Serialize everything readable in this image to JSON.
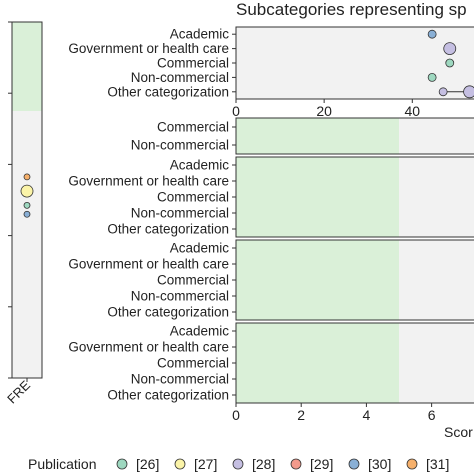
{
  "title": "Subcategories representing sp",
  "left_panel": {
    "x_tick": "FRE",
    "ylim": [
      0,
      100
    ],
    "green_band": [
      75,
      100
    ],
    "points": [
      {
        "pub": "[31]",
        "y": 56.5
      },
      {
        "pub": "[27]",
        "y": 52.5
      },
      {
        "pub": "[26]",
        "y": 48.5
      },
      {
        "pub": "[30]",
        "y": 46.0
      }
    ]
  },
  "chart_data": [
    {
      "type": "scatter",
      "panel": "top",
      "title": "Subcategories representing sp",
      "categories": [
        "Academic",
        "Government or health care",
        "Commercial",
        "Non-commercial",
        "Other categorization"
      ],
      "xlim": [
        0,
        54
      ],
      "x_ticks": [
        "0",
        "20",
        "40"
      ],
      "points": [
        {
          "cat": "Academic",
          "x": 44.5,
          "pub": "[30]",
          "size": 1
        },
        {
          "cat": "Government or health care",
          "x": 48.5,
          "pub": "[28]",
          "size": 2
        },
        {
          "cat": "Commercial",
          "x": 48.5,
          "pub": "[26]",
          "size": 1
        },
        {
          "cat": "Non-commercial",
          "x": 44.5,
          "pub": "[26]",
          "size": 1
        },
        {
          "cat": "Other categorization",
          "x": 47.0,
          "pub": "[28]",
          "size": 1
        },
        {
          "cat": "Other categorization",
          "x": 53.0,
          "pub": "[28]",
          "size": 2
        }
      ],
      "segments": [
        {
          "cat": "Other categorization",
          "x1": 47.0,
          "x2": 53.0
        }
      ]
    },
    {
      "type": "scatter",
      "panel": "2",
      "categories": [
        "Commercial",
        "Non-commercial"
      ],
      "xlim": [
        0,
        7.3
      ],
      "green_band": [
        0,
        5
      ]
    },
    {
      "type": "scatter",
      "panel": "3",
      "categories": [
        "Academic",
        "Government or health care",
        "Commercial",
        "Non-commercial",
        "Other categorization"
      ],
      "xlim": [
        0,
        7.3
      ],
      "green_band": [
        0,
        5
      ]
    },
    {
      "type": "scatter",
      "panel": "4",
      "categories": [
        "Academic",
        "Government or health care",
        "Commercial",
        "Non-commercial",
        "Other categorization"
      ],
      "xlim": [
        0,
        7.3
      ],
      "green_band": [
        0,
        5
      ]
    },
    {
      "type": "scatter",
      "panel": "5",
      "categories": [
        "Academic",
        "Government or health care",
        "Commercial",
        "Non-commercial",
        "Other categorization"
      ],
      "xlim": [
        0,
        7.3
      ],
      "green_band": [
        0,
        5
      ],
      "x_ticks": [
        "0",
        "2",
        "4",
        "6"
      ],
      "xlabel": "Scor"
    }
  ],
  "legend": {
    "title": "Publication",
    "items": [
      {
        "label": "[26]",
        "color": "#9ed8c0"
      },
      {
        "label": "[27]",
        "color": "#fbf4a8"
      },
      {
        "label": "[28]",
        "color": "#c5bfe2"
      },
      {
        "label": "[29]",
        "color": "#f29a8c"
      },
      {
        "label": "[30]",
        "color": "#8ab0d6"
      },
      {
        "label": "[31]",
        "color": "#f6b06b"
      }
    ]
  },
  "colors": {
    "panel_bg": "#f2f2f2",
    "green": "#daf0d8",
    "grid": "#d0d0d0"
  }
}
